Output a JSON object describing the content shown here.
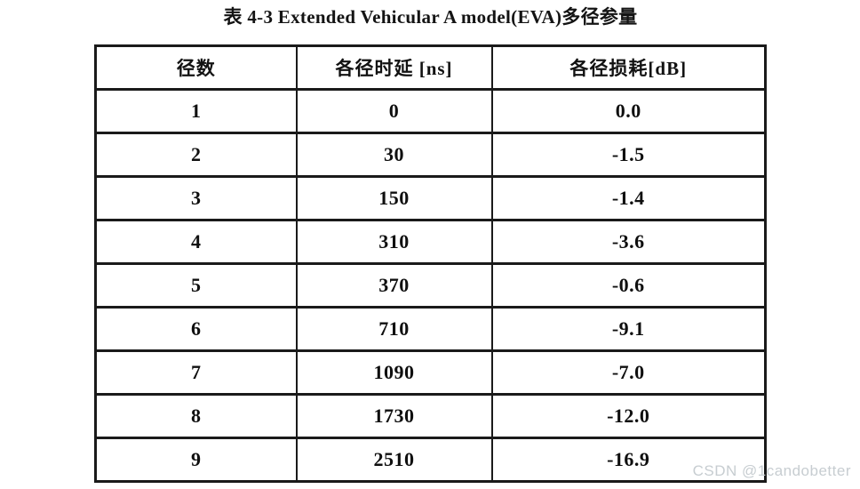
{
  "page": {
    "watermark": "CSDN @1candobetter"
  },
  "document": {
    "caption": "表 4-3 Extended Vehicular A model(EVA)多径参量"
  },
  "table": {
    "headers": [
      "径数",
      "各径时延 [ns]",
      "各径损耗[dB]"
    ],
    "rows": [
      [
        "1",
        "0",
        "0.0"
      ],
      [
        "2",
        "30",
        "-1.5"
      ],
      [
        "3",
        "150",
        "-1.4"
      ],
      [
        "4",
        "310",
        "-3.6"
      ],
      [
        "5",
        "370",
        "-0.6"
      ],
      [
        "6",
        "710",
        "-9.1"
      ],
      [
        "7",
        "1090",
        "-7.0"
      ],
      [
        "8",
        "1730",
        "-12.0"
      ],
      [
        "9",
        "2510",
        "-16.9"
      ]
    ]
  },
  "colors": {
    "border": "#1a1a1a",
    "text": "#0f0f0f",
    "watermark_text": "#c7cdd1",
    "background": "#ffffff"
  }
}
